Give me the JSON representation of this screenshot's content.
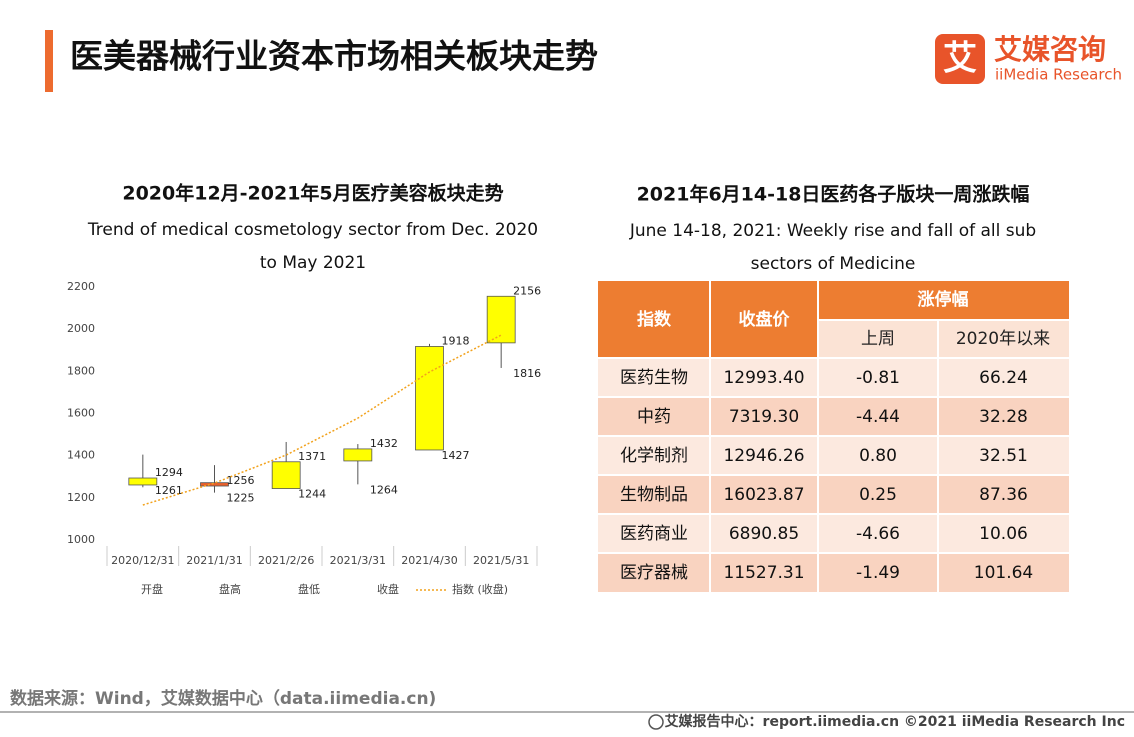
{
  "header": {
    "title": "医美器械行业资本市场相关板块走势",
    "logo_mark": "艾",
    "logo_cn": "艾媒咨询",
    "logo_en": "iiMedia Research"
  },
  "chart_data": {
    "type": "candlestick",
    "title": "2020年12月-2021年5月医疗美容板块走势",
    "subtitle": [
      "Trend of medical cosmetology sector from Dec. 2020",
      "to May 2021"
    ],
    "categories": [
      "2020/12/31",
      "2021/1/31",
      "2021/2/26",
      "2021/3/31",
      "2021/4/30",
      "2021/5/31"
    ],
    "series": [
      {
        "name": "开盘",
        "values": [
          1261,
          1272,
          1244,
          1375,
          1427,
          1935
        ]
      },
      {
        "name": "盘高",
        "values": [
          1405,
          1355,
          1465,
          1455,
          1930,
          2156
        ]
      },
      {
        "name": "盘低",
        "values": [
          1250,
          1225,
          1244,
          1264,
          1427,
          1816
        ]
      },
      {
        "name": "收盘",
        "values": [
          1294,
          1256,
          1371,
          1432,
          1918,
          2156
        ]
      },
      {
        "name": "指数 (收盘)",
        "color": "#f2a21c",
        "values": [
          1166,
          1270,
          1403,
          1578,
          1797,
          1972
        ]
      }
    ],
    "up_color": "#ffff00",
    "down_color": "#e8602c",
    "ylim": [
      1000,
      2200
    ],
    "yticks": [
      1000,
      1200,
      1400,
      1600,
      1800,
      2000,
      2200
    ]
  },
  "right_panel": {
    "title": "2021年6月14-18日医药各子版块一周涨跌幅",
    "subtitle": [
      "June 14-18, 2021: Weekly rise and fall of all sub",
      "sectors of Medicine"
    ]
  },
  "table": {
    "headers": [
      "指数",
      "收盘价",
      "涨停幅"
    ],
    "subheaders": [
      "上周",
      "2020年以来"
    ],
    "rows": [
      [
        "医药生物",
        "12993.40",
        "-0.81",
        "66.24"
      ],
      [
        "中药",
        "7319.30",
        "-4.44",
        "32.28"
      ],
      [
        "化学制剂",
        "12946.26",
        "0.80",
        "32.51"
      ],
      [
        "生物制品",
        "16023.87",
        "0.25",
        "87.36"
      ],
      [
        "医药商业",
        "6890.85",
        "-4.66",
        "10.06"
      ],
      [
        "医疗器械",
        "11527.31",
        "-1.49",
        "101.64"
      ]
    ]
  },
  "footer": {
    "source": "数据来源：Wind，艾媒数据中心（data.iimedia.cn)",
    "credit": "艾媒报告中心：report.iimedia.cn  ©2021  iiMedia Research  Inc"
  }
}
